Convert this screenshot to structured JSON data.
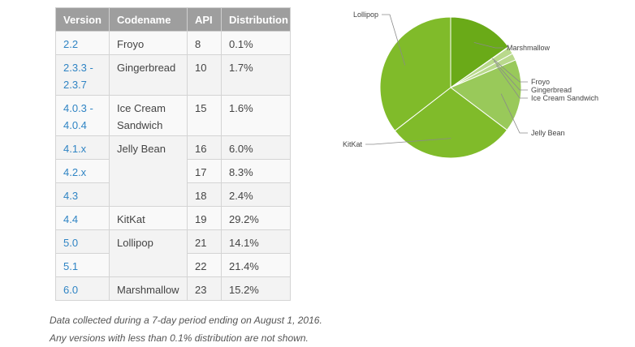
{
  "table": {
    "headers": [
      "Version",
      "Codename",
      "API",
      "Distribution"
    ],
    "rows": [
      {
        "version": "2.2",
        "codename": "Froyo",
        "api": "8",
        "distribution": "0.1%"
      },
      {
        "version": "2.3.3 - 2.3.7",
        "codename": "Gingerbread",
        "api": "10",
        "distribution": "1.7%"
      },
      {
        "version": "4.0.3 - 4.0.4",
        "codename": "Ice Cream Sandwich",
        "api": "15",
        "distribution": "1.6%"
      },
      {
        "version": "4.1.x",
        "codename": "Jelly Bean",
        "api": "16",
        "distribution": "6.0%"
      },
      {
        "version": "4.2.x",
        "codename": "",
        "api": "17",
        "distribution": "8.3%"
      },
      {
        "version": "4.3",
        "codename": "",
        "api": "18",
        "distribution": "2.4%"
      },
      {
        "version": "4.4",
        "codename": "KitKat",
        "api": "19",
        "distribution": "29.2%"
      },
      {
        "version": "5.0",
        "codename": "Lollipop",
        "api": "21",
        "distribution": "14.1%"
      },
      {
        "version": "5.1",
        "codename": "",
        "api": "22",
        "distribution": "21.4%"
      },
      {
        "version": "6.0",
        "codename": "Marshmallow",
        "api": "23",
        "distribution": "15.2%"
      }
    ]
  },
  "notes": {
    "line1": "Data collected during a 7-day period ending on August 1, 2016.",
    "line2": "Any versions with less than 0.1% distribution are not shown."
  },
  "colors": {
    "header_bg": "#9e9e9e",
    "link": "#2f84c4",
    "pie_main": "#80bb2a",
    "pie_dark": "#6aaa18",
    "pie_light": "#99c95a",
    "pie_pale": "#b9d98c"
  },
  "chart_data": {
    "type": "pie",
    "title": "",
    "start_angle_deg": 90,
    "direction": "clockwise",
    "slices": [
      {
        "label": "Marshmallow",
        "value": 15.2
      },
      {
        "label": "Froyo",
        "value": 0.1
      },
      {
        "label": "Gingerbread",
        "value": 1.7
      },
      {
        "label": "Ice Cream Sandwich",
        "value": 1.6
      },
      {
        "label": "Jelly Bean",
        "value": 16.7
      },
      {
        "label": "KitKat",
        "value": 29.2
      },
      {
        "label": "Lollipop",
        "value": 35.5
      }
    ]
  }
}
